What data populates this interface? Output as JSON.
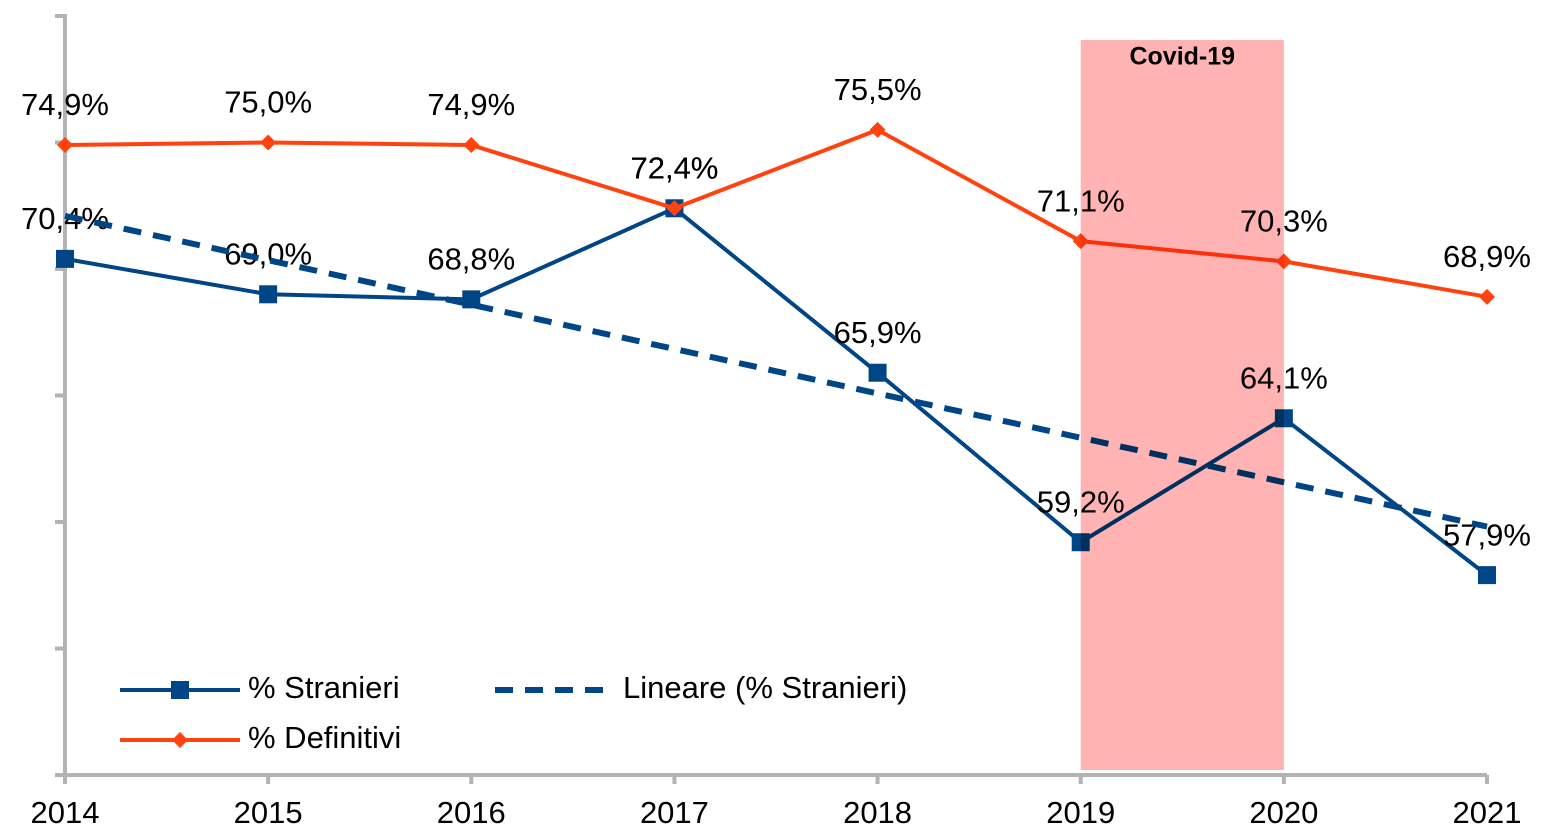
{
  "chart_data": {
    "type": "line",
    "categories": [
      "2014",
      "2015",
      "2016",
      "2017",
      "2018",
      "2019",
      "2020",
      "2021"
    ],
    "ylim": [
      50,
      80
    ],
    "yticks": [
      50,
      55,
      60,
      65,
      70,
      75,
      80
    ],
    "legend": "lower left",
    "series": [
      {
        "name": "% Stranieri",
        "color": "#004586",
        "marker": "square",
        "values": [
          70.4,
          69.0,
          68.8,
          72.4,
          65.9,
          59.2,
          64.1,
          57.9
        ],
        "value_labels": [
          "70,4%",
          "69,0%",
          "68,8%",
          "72,4%",
          "65,9%",
          "59,2%",
          "64,1%",
          "57,9%"
        ]
      },
      {
        "name": "Lineare (% Stranieri)",
        "color": "#004586",
        "dashed": true,
        "values": [
          72.1,
          70.35,
          68.59,
          66.84,
          65.08,
          63.33,
          61.57,
          59.82
        ]
      },
      {
        "name": "% Definitivi",
        "color": "#ff420e",
        "marker": "diamond",
        "values": [
          74.9,
          75.0,
          74.9,
          72.4,
          75.5,
          71.1,
          70.3,
          68.9
        ],
        "value_labels": [
          "74,9%",
          "75,0%",
          "74,9%",
          "72,4%",
          "75,5%",
          "71,1%",
          "70,3%",
          "68,9%"
        ]
      }
    ],
    "highlight": {
      "label": "Covid-19",
      "from": "2019",
      "to": "2020",
      "color": "#ffb3b3"
    }
  }
}
